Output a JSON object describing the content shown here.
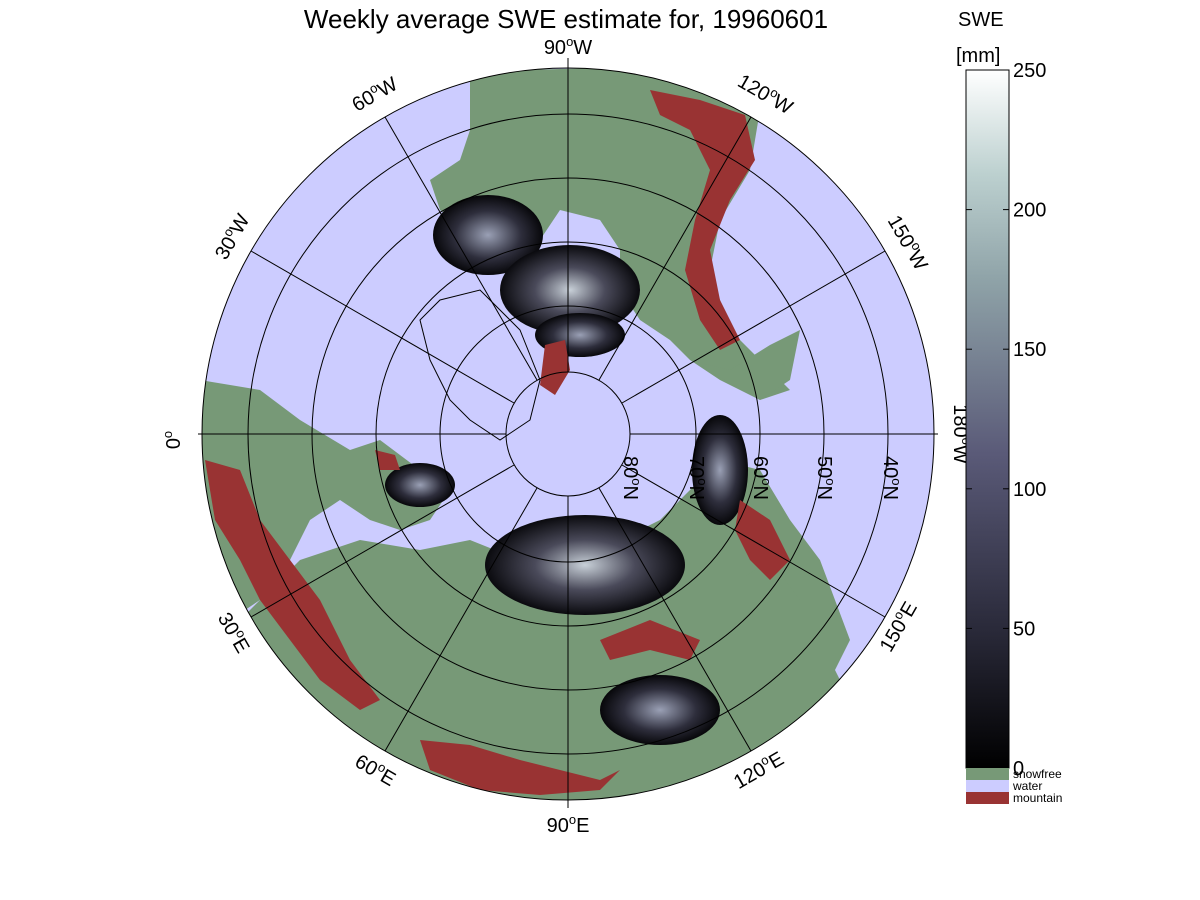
{
  "title": "Weekly average SWE estimate for, 19960601",
  "map": {
    "longitude_labels": [
      {
        "lon": "90",
        "hemi": "W"
      },
      {
        "lon": "120",
        "hemi": "W"
      },
      {
        "lon": "150",
        "hemi": "W"
      },
      {
        "lon": "180",
        "hemi": "W"
      },
      {
        "lon": "150",
        "hemi": "E"
      },
      {
        "lon": "120",
        "hemi": "E"
      },
      {
        "lon": "90",
        "hemi": "E"
      },
      {
        "lon": "60",
        "hemi": "E"
      },
      {
        "lon": "30",
        "hemi": "E"
      },
      {
        "lon": "0",
        "hemi": ""
      },
      {
        "lon": "30",
        "hemi": "W"
      },
      {
        "lon": "60",
        "hemi": "W"
      }
    ],
    "latitude_labels": [
      {
        "lat": "80",
        "hemi": "N"
      },
      {
        "lat": "70",
        "hemi": "N"
      },
      {
        "lat": "60",
        "hemi": "N"
      },
      {
        "lat": "50",
        "hemi": "N"
      },
      {
        "lat": "40",
        "hemi": "N"
      }
    ]
  },
  "colorbar": {
    "title_line1": "SWE",
    "title_line2": "[mm]",
    "ticks": [
      "0",
      "50",
      "100",
      "150",
      "200",
      "250"
    ],
    "categories": [
      {
        "label": "snowfree",
        "color": "#779977"
      },
      {
        "label": "water",
        "color": "#ccccff"
      },
      {
        "label": "mountain",
        "color": "#993333"
      }
    ]
  },
  "colors": {
    "water": "#ccccff",
    "snowfree": "#779977",
    "mountain": "#993333",
    "swe_low": "#0d0d10",
    "swe_high": "#ffffff"
  }
}
